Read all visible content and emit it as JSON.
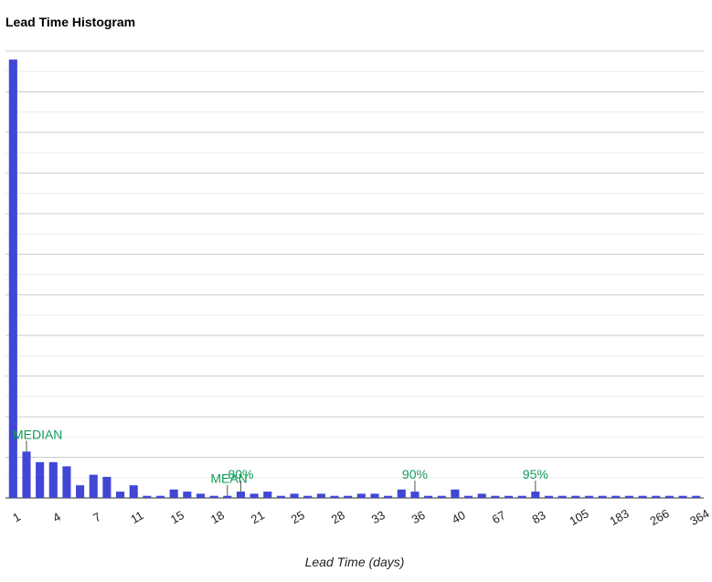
{
  "chart_data": {
    "type": "bar",
    "title": "Lead Time Histogram",
    "xlabel": "Lead Time (days)",
    "ylabel": "",
    "ylim": [
      0,
      106
    ],
    "grid": true,
    "legend": "none",
    "bar_color": "#4147d4",
    "annotation_color": "#0f9d58",
    "x_tick_labels": [
      "1",
      "4",
      "7",
      "11",
      "15",
      "18",
      "21",
      "25",
      "28",
      "33",
      "36",
      "40",
      "67",
      "83",
      "105",
      "183",
      "266",
      "364"
    ],
    "values": [
      104,
      11,
      8.5,
      8.5,
      7.5,
      3,
      5.5,
      5,
      1.5,
      3,
      0.5,
      0.5,
      2,
      1.5,
      1,
      0.5,
      0.5,
      1.5,
      1,
      1.5,
      0.5,
      1,
      0.5,
      1,
      0.5,
      0.5,
      1,
      1,
      0.5,
      2,
      1.5,
      0.5,
      0.5,
      2,
      0.5,
      1,
      0.5,
      0.5,
      0.5,
      1.5,
      0.5,
      0.5,
      0.5,
      0.5,
      0.5,
      0.5,
      0.5,
      0.5,
      0.5,
      0.5,
      0.5,
      0.5
    ],
    "annotations": [
      {
        "label": "MEDIAN",
        "bar_index": 1
      },
      {
        "label": "MEAN",
        "bar_index": 16
      },
      {
        "label": "80%",
        "bar_index": 17
      },
      {
        "label": "90%",
        "bar_index": 30
      },
      {
        "label": "95%",
        "bar_index": 39
      }
    ]
  }
}
